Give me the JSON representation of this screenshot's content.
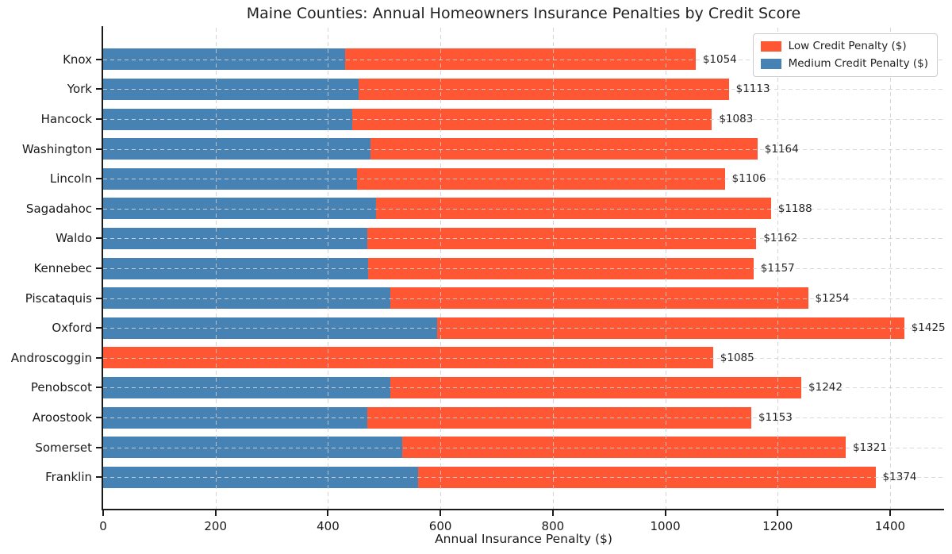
{
  "page_title": "Maine Counties: Annual Homeowners Insurance Penalties by Credit Score",
  "axes": {
    "xlabel": "Annual Insurance Penalty ($)",
    "xtick_labels": [
      "0",
      "200",
      "400",
      "600",
      "800",
      "1000",
      "1200",
      "1400"
    ]
  },
  "legend": {
    "items": [
      {
        "label": "Low Credit Penalty ($)",
        "color": "#FF5733",
        "swatch": "low-credit-swatch"
      },
      {
        "label": "Medium Credit Penalty ($)",
        "color": "#4682B4",
        "swatch": "medium-credit-swatch"
      }
    ]
  },
  "chart_data": {
    "type": "bar",
    "orientation": "horizontal",
    "overlaid": true,
    "title": "Maine Counties: Annual Homeowners Insurance Penalties by Credit Score",
    "xlabel": "Annual Insurance Penalty ($)",
    "categories": [
      "Knox",
      "York",
      "Hancock",
      "Washington",
      "Lincoln",
      "Sagadahoc",
      "Waldo",
      "Kennebec",
      "Piscataquis",
      "Oxford",
      "Androscoggin",
      "Penobscot",
      "Aroostook",
      "Somerset",
      "Franklin"
    ],
    "series": [
      {
        "name": "Low Credit Penalty ($)",
        "color": "#FF5733",
        "values": [
          1054,
          1113,
          1083,
          1164,
          1106,
          1188,
          1162,
          1157,
          1254,
          1425,
          1085,
          1242,
          1153,
          1321,
          1374
        ]
      },
      {
        "name": "Medium Credit Penalty ($)",
        "color": "#4682B4",
        "values": [
          430,
          455,
          443,
          475,
          452,
          486,
          470,
          472,
          511,
          594,
          0,
          511,
          470,
          532,
          560
        ],
        "note": "values estimated from gridlines; Androscoggin has no medium bar"
      }
    ],
    "bar_value_labels": [
      "$1054",
      "$1113",
      "$1083",
      "$1164",
      "$1106",
      "$1188",
      "$1162",
      "$1157",
      "$1254",
      "$1425",
      "$1085",
      "$1242",
      "$1153",
      "$1321",
      "$1374"
    ],
    "xlim": [
      0,
      1496
    ],
    "xticks": [
      0,
      200,
      400,
      600,
      800,
      1000,
      1200,
      1400
    ],
    "grid": true,
    "grid_style": "dashed",
    "grid_above_bars": true,
    "legend_position": "upper right"
  }
}
